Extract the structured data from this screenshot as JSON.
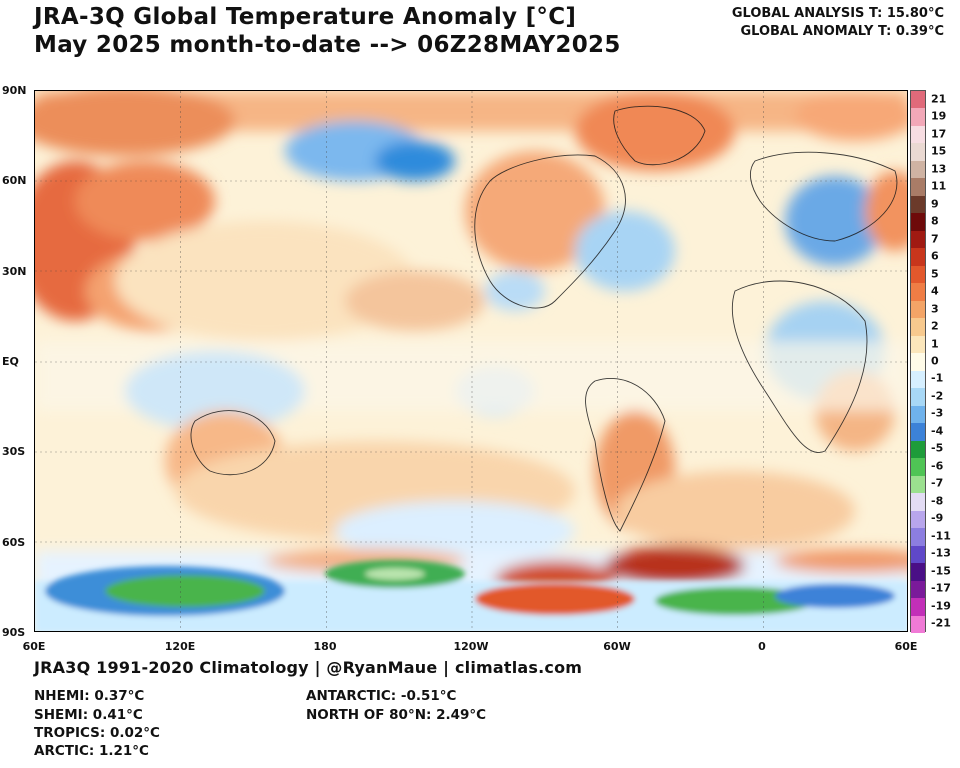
{
  "header": {
    "title_line1": "JRA-3Q Global Temperature Anomaly [°C]",
    "title_line2": "May 2025 month-to-date --> 06Z28MAY2025",
    "global_analysis": "GLOBAL ANALYSIS T: 15.80°C",
    "global_anomaly": "GLOBAL ANOMALY T: 0.39°C"
  },
  "map": {
    "lat_labels": [
      "90N",
      "60N",
      "30N",
      "EQ",
      "30S",
      "60S",
      "90S"
    ],
    "lon_labels": [
      "60E",
      "120E",
      "180",
      "120W",
      "60W",
      "0",
      "60E"
    ]
  },
  "colorbar": {
    "labels": [
      "21",
      "19",
      "17",
      "15",
      "13",
      "11",
      "9",
      "8",
      "7",
      "6",
      "5",
      "4",
      "3",
      "2",
      "1",
      "0",
      "-1",
      "-2",
      "-3",
      "-4",
      "-5",
      "-6",
      "-7",
      "-8",
      "-9",
      "-11",
      "-13",
      "-15",
      "-17",
      "-19",
      "-21"
    ],
    "colors": [
      "#e06a7a",
      "#f2a8b8",
      "#f7dde2",
      "#ead9d2",
      "#cfb3a3",
      "#a97c67",
      "#6b3a2a",
      "#6e0a0a",
      "#a01a12",
      "#c8361c",
      "#e2582c",
      "#ef7d45",
      "#f3a467",
      "#f7c98e",
      "#fbe6bb",
      "#fffbe8",
      "#d6efff",
      "#a8d8f6",
      "#6fb2ec",
      "#3c82d8",
      "#1e9c3a",
      "#4fc455",
      "#9be08f",
      "#e3dcf4",
      "#b8a6ec",
      "#8c7ee0",
      "#5f48c8",
      "#4a0f86",
      "#7a1a9a",
      "#c22fb8",
      "#f07ad6"
    ]
  },
  "footer": {
    "credit": "JRA3Q 1991-2020 Climatology | @RyanMaue | climatlas.com",
    "stats": [
      {
        "label": "NHEMI: 0.37°C"
      },
      {
        "label": "SHEMI: 0.41°C"
      },
      {
        "label": "TROPICS: 0.02°C"
      },
      {
        "label": "ARCTIC: 1.21°C"
      },
      {
        "label": "ANTARCTIC: -0.51°C"
      },
      {
        "label": "NORTH OF 80°N: 2.49°C"
      }
    ]
  }
}
